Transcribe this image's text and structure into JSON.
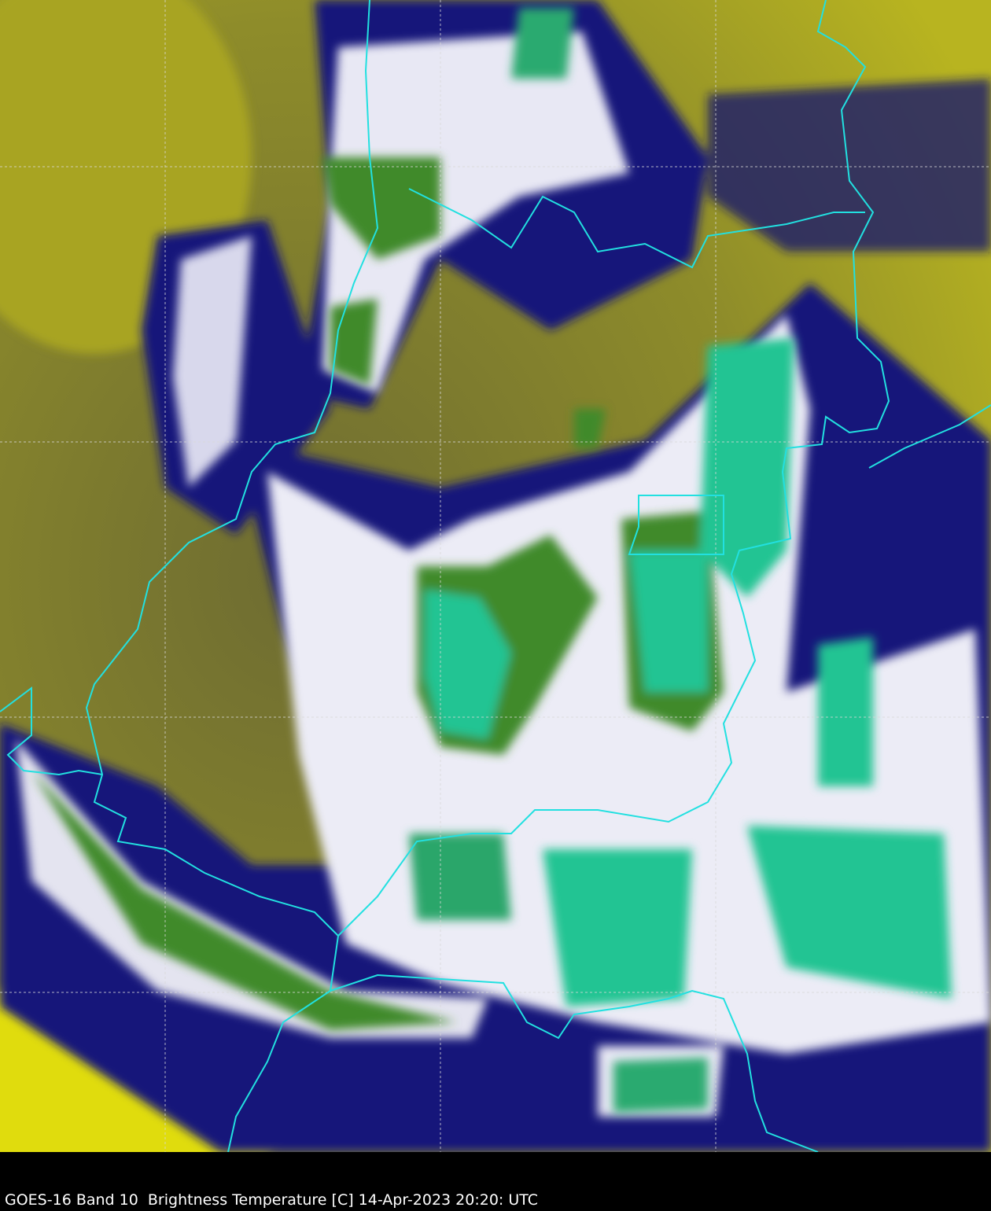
{
  "caption": "GOES-16 Band 10  Brightness Temperature [C] 14-Apr-2023 20:20: UTC",
  "colors": {
    "warm_clear": "#c8c41e",
    "mid_olive": "#6e6c32",
    "cold_edge_navy": "#12127a",
    "cloud_white": "#f0f0f8",
    "cold_green": "#3f8a2a",
    "coldest_teal": "#22c493",
    "border_cyan": "#22e0e0",
    "graticule": "#d8d8d8"
  }
}
